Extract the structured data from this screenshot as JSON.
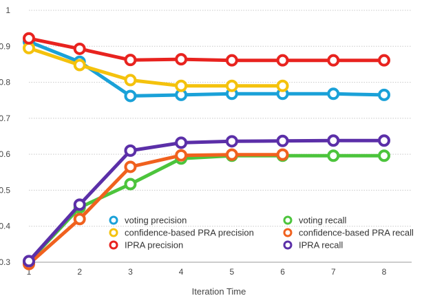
{
  "chart_data": {
    "type": "line",
    "xlabel": "Iteration Time",
    "ylabel": "",
    "xlim": [
      1,
      8
    ],
    "ylim": [
      0.3,
      1.0
    ],
    "x_ticks": [
      "1",
      "2",
      "3",
      "4",
      "5",
      "6",
      "7",
      "8"
    ],
    "y_ticks": [
      "0.3",
      "0.4",
      "0.5",
      "0.6",
      "0.7",
      "0.8",
      "0.9",
      "1"
    ],
    "grid": true,
    "legend_position": "bottom-center",
    "series": [
      {
        "name": "voting precision",
        "color": "#1aa1d8",
        "x": [
          1,
          2,
          3,
          4,
          5,
          6,
          7,
          8
        ],
        "values": [
          0.913,
          0.857,
          0.762,
          0.765,
          0.768,
          0.768,
          0.768,
          0.765
        ]
      },
      {
        "name": "confidence-based PRA precision",
        "color": "#f4c20d",
        "x": [
          1,
          2,
          3,
          4,
          5,
          6
        ],
        "values": [
          0.895,
          0.848,
          0.806,
          0.79,
          0.79,
          0.79
        ]
      },
      {
        "name": "IPRA precision",
        "color": "#e8231f",
        "x": [
          1,
          2,
          3,
          4,
          5,
          6,
          7,
          8
        ],
        "values": [
          0.922,
          0.893,
          0.862,
          0.864,
          0.861,
          0.861,
          0.861,
          0.861
        ]
      },
      {
        "name": "voting recall",
        "color": "#4cc43c",
        "x": [
          1,
          2,
          3,
          4,
          5,
          6,
          7,
          8
        ],
        "values": [
          0.302,
          0.452,
          0.517,
          0.588,
          0.596,
          0.596,
          0.596,
          0.596
        ]
      },
      {
        "name": "confidence-based PRA recall",
        "color": "#f0611e",
        "x": [
          1,
          2,
          3,
          4,
          5,
          6
        ],
        "values": [
          0.295,
          0.42,
          0.565,
          0.597,
          0.599,
          0.599
        ]
      },
      {
        "name": "IPRA recall",
        "color": "#5b2fa8",
        "x": [
          1,
          2,
          3,
          4,
          5,
          6,
          7,
          8
        ],
        "values": [
          0.303,
          0.46,
          0.61,
          0.632,
          0.636,
          0.637,
          0.638,
          0.638
        ]
      }
    ]
  }
}
